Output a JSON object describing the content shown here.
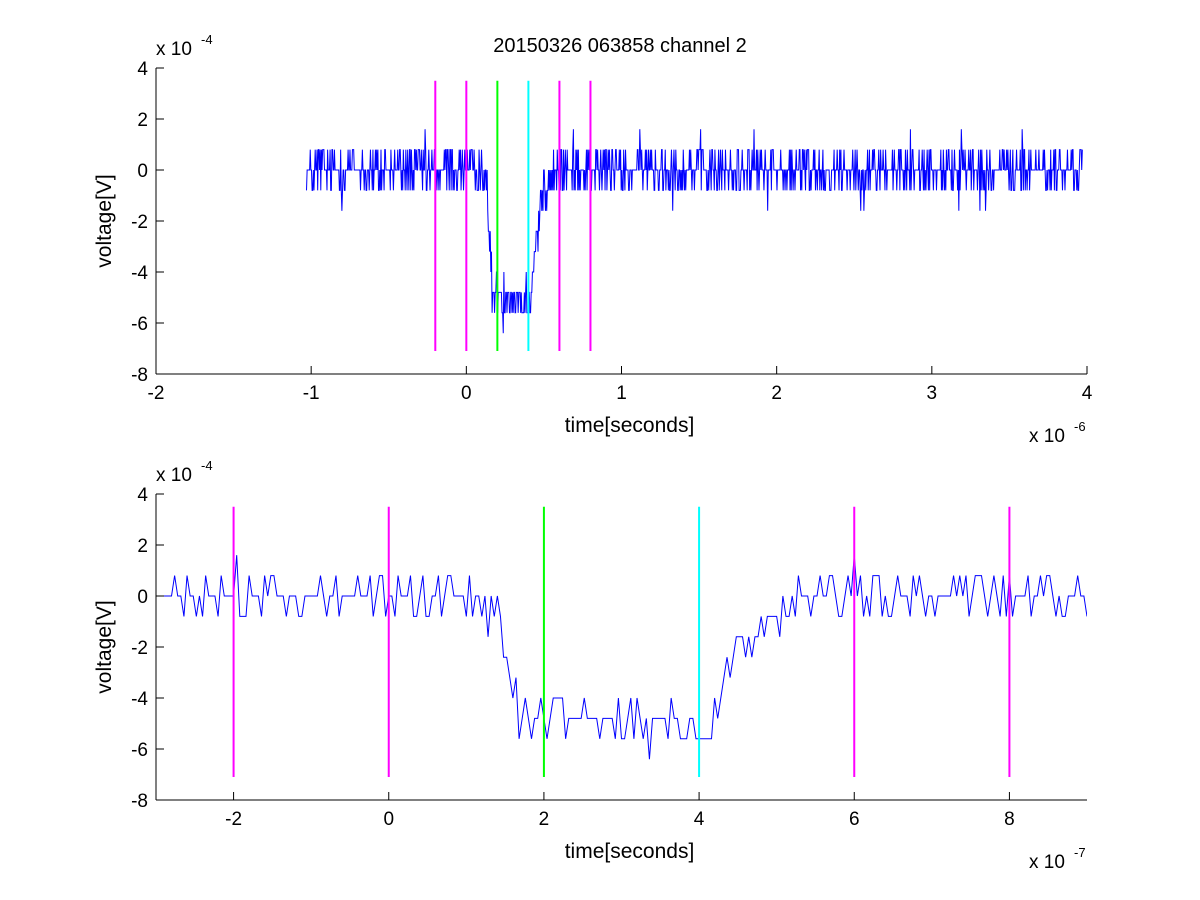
{
  "figure": {
    "title": "20150326 063858 channel 2"
  },
  "colors": {
    "signal": "#0000ff",
    "marker_magenta": "#ff00ff",
    "marker_green": "#00ff00",
    "marker_cyan": "#00ffff",
    "axes": "#000000"
  },
  "chart_data": [
    {
      "type": "line",
      "title": "20150326 063858 channel 2",
      "xlabel": "time[seconds]",
      "ylabel": "voltage[V]",
      "x_exponent_label": "x 10",
      "x_exponent": "-6",
      "y_exponent_label": "x 10",
      "y_exponent": "-4",
      "xlim": [
        -2e-06,
        4e-06
      ],
      "ylim": [
        -0.0008,
        0.0004
      ],
      "x_ticks": [
        -2e-06,
        -1e-06,
        0,
        1e-06,
        2e-06,
        3e-06,
        4e-06
      ],
      "x_tick_labels": [
        "-2",
        "-1",
        "0",
        "1",
        "2",
        "3",
        "4"
      ],
      "y_ticks": [
        -0.0008,
        -0.0006,
        -0.0004,
        -0.0002,
        0,
        0.0002,
        0.0004
      ],
      "y_tick_labels": [
        "-8",
        "-6",
        "-4",
        "-2",
        "0",
        "2",
        "4"
      ],
      "grid": false,
      "series": [
        {
          "color": "#0000ff",
          "x_start": -1.03e-06,
          "x_end": 3.97e-06,
          "x_step": 4e-09,
          "noise_amplitude": 0.00016,
          "quantization": 8e-05,
          "baseline_segments": [
            {
              "x": -1.03e-06,
              "y": 0
            },
            {
              "x": 1.2e-07,
              "y": 0
            },
            {
              "x": 1.7e-07,
              "y": -0.00048
            },
            {
              "x": 4e-07,
              "y": -0.00052
            },
            {
              "x": 4.8e-07,
              "y": -0.00012
            },
            {
              "x": 6e-07,
              "y": 0
            },
            {
              "x": 3.97e-06,
              "y": 0
            }
          ]
        }
      ],
      "vertical_markers": [
        {
          "x": -2e-07,
          "color": "#ff00ff",
          "y_range": [
            -0.00071,
            0.00035
          ]
        },
        {
          "x": 0,
          "color": "#ff00ff",
          "y_range": [
            -0.00071,
            0.00035
          ]
        },
        {
          "x": 2e-07,
          "color": "#00ff00",
          "y_range": [
            -0.00071,
            0.00035
          ]
        },
        {
          "x": 4e-07,
          "color": "#00ffff",
          "y_range": [
            -0.00071,
            0.00035
          ]
        },
        {
          "x": 6e-07,
          "color": "#ff00ff",
          "y_range": [
            -0.00071,
            0.00035
          ]
        },
        {
          "x": 8e-07,
          "color": "#ff00ff",
          "y_range": [
            -0.00071,
            0.00035
          ]
        }
      ]
    },
    {
      "type": "line",
      "title": "",
      "xlabel": "time[seconds]",
      "ylabel": "voltage[V]",
      "x_exponent_label": "x 10",
      "x_exponent": "-7",
      "y_exponent_label": "x 10",
      "y_exponent": "-4",
      "xlim": [
        -3e-07,
        9e-07
      ],
      "ylim": [
        -0.0008,
        0.0004
      ],
      "x_ticks": [
        -2e-07,
        0,
        2e-07,
        4e-07,
        6e-07,
        8e-07
      ],
      "x_tick_labels": [
        "-2",
        "0",
        "2",
        "4",
        "6",
        "8"
      ],
      "y_ticks": [
        -0.0008,
        -0.0006,
        -0.0004,
        -0.0002,
        0,
        0.0002,
        0.0004
      ],
      "y_tick_labels": [
        "-8",
        "-6",
        "-4",
        "-2",
        "0",
        "2",
        "4"
      ],
      "grid": false,
      "series": [
        {
          "color": "#0000ff",
          "x_start": -3e-07,
          "x_end": 9e-07,
          "x_step": 4e-09,
          "noise_amplitude": 0.00016,
          "quantization": 8e-05,
          "baseline_segments": [
            {
              "x": -3e-07,
              "y": 0
            },
            {
              "x": 1.4e-07,
              "y": 0
            },
            {
              "x": 1.7e-07,
              "y": -0.00048
            },
            {
              "x": 2.6e-07,
              "y": -0.00046
            },
            {
              "x": 4.1e-07,
              "y": -0.00054
            },
            {
              "x": 4.5e-07,
              "y": -0.00016
            },
            {
              "x": 5.4e-07,
              "y": 0
            },
            {
              "x": 9e-07,
              "y": 0
            }
          ]
        }
      ],
      "vertical_markers": [
        {
          "x": -2e-07,
          "color": "#ff00ff",
          "y_range": [
            -0.00071,
            0.00035
          ]
        },
        {
          "x": 0,
          "color": "#ff00ff",
          "y_range": [
            -0.00071,
            0.00035
          ]
        },
        {
          "x": 2e-07,
          "color": "#00ff00",
          "y_range": [
            -0.00071,
            0.00035
          ]
        },
        {
          "x": 4e-07,
          "color": "#00ffff",
          "y_range": [
            -0.00071,
            0.00035
          ]
        },
        {
          "x": 6e-07,
          "color": "#ff00ff",
          "y_range": [
            -0.00071,
            0.00035
          ]
        },
        {
          "x": 8e-07,
          "color": "#ff00ff",
          "y_range": [
            -0.00071,
            0.00035
          ]
        }
      ]
    }
  ]
}
